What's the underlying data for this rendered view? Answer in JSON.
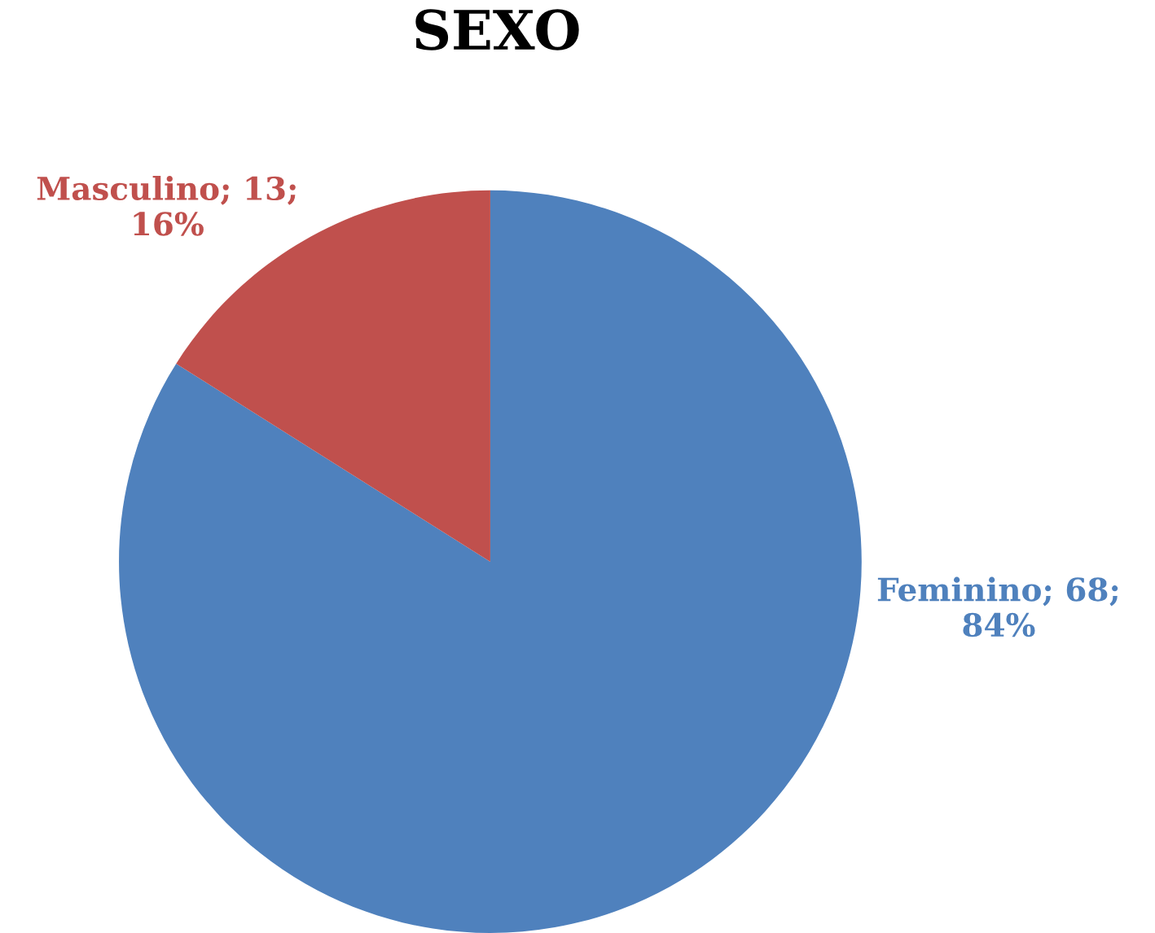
{
  "chart_data": {
    "type": "pie",
    "title": "SEXO",
    "categories": [
      "Feminino",
      "Masculino"
    ],
    "values": [
      68,
      13
    ],
    "value_labels": [
      "68; 84%",
      "13; 16%"
    ],
    "colors": [
      "#4f81bd",
      "#c0504d"
    ],
    "legend": false
  }
}
